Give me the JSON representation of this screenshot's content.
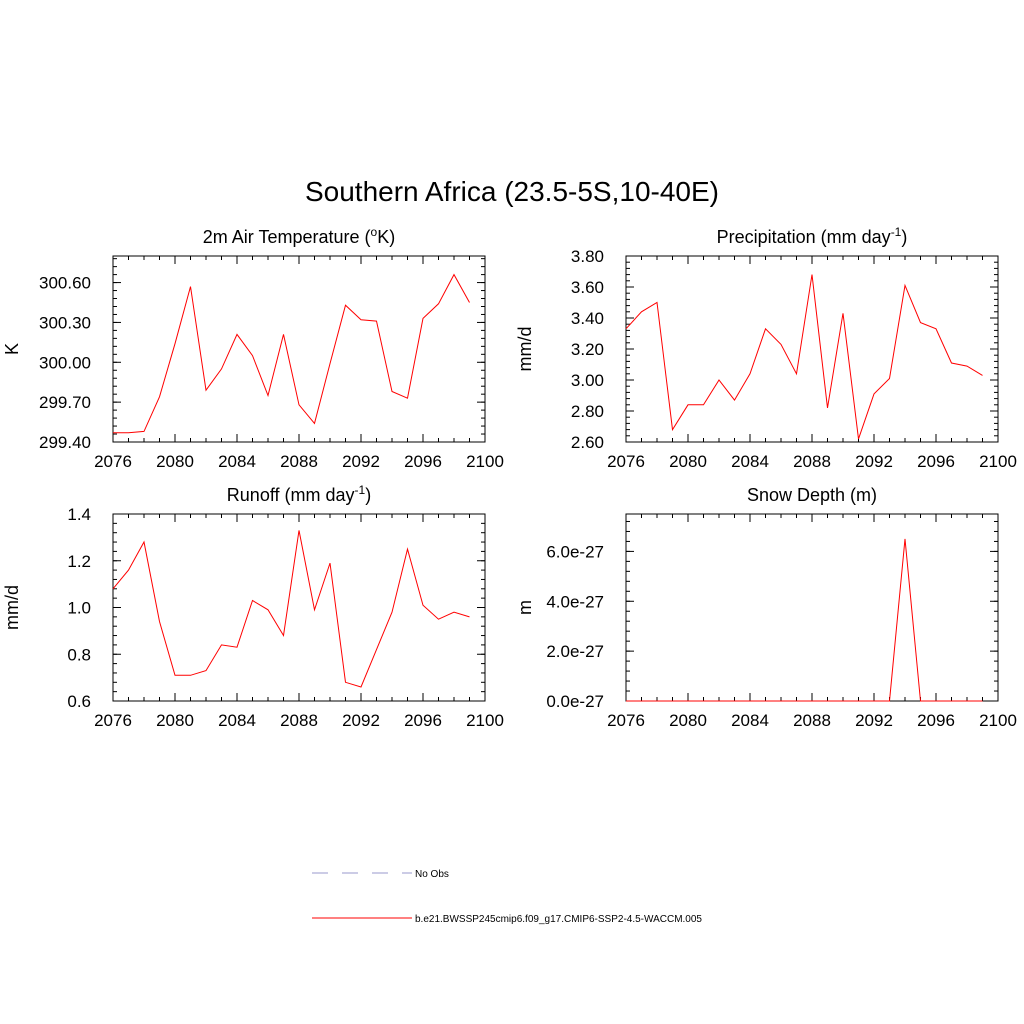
{
  "figure": {
    "title": "Southern Africa (23.5-5S,10-40E)",
    "line_color": "#ff0000",
    "obs_color": "#9999cc",
    "legend": [
      {
        "label": "No Obs",
        "style": "dashed",
        "color": "#9999cc"
      },
      {
        "label": "b.e21.BWSSP245cmip6.f09_g17.CMIP6-SSP2-4.5-WACCM.005",
        "style": "solid",
        "color": "#ff0000"
      }
    ]
  },
  "chart_data": [
    {
      "type": "line",
      "title": "2m Air Temperature (",
      "title_sup": "o",
      "title_after": "K)",
      "ylabel": "K",
      "xlim": [
        2076,
        2100
      ],
      "ylim": [
        299.4,
        300.8
      ],
      "x_ticks": [
        "2076",
        "2080",
        "2084",
        "2088",
        "2092",
        "2096",
        "2100"
      ],
      "y_ticks": [
        {
          "value": 299.4,
          "label": "299.40"
        },
        {
          "value": 299.7,
          "label": "299.70"
        },
        {
          "value": 300.0,
          "label": "300.00"
        },
        {
          "value": 300.3,
          "label": "300.30"
        },
        {
          "value": 300.6,
          "label": "300.60"
        }
      ],
      "y_minor_step": 0.06,
      "x": [
        2076,
        2077,
        2078,
        2079,
        2080,
        2081,
        2082,
        2083,
        2084,
        2085,
        2086,
        2087,
        2088,
        2089,
        2090,
        2091,
        2092,
        2093,
        2094,
        2095,
        2096,
        2097,
        2098,
        2099
      ],
      "values": [
        299.47,
        299.47,
        299.48,
        299.74,
        300.14,
        300.57,
        299.79,
        299.95,
        300.21,
        300.05,
        299.75,
        300.21,
        299.68,
        299.54,
        299.99,
        300.43,
        300.32,
        300.31,
        299.78,
        299.73,
        300.33,
        300.44,
        300.66,
        300.45
      ]
    },
    {
      "type": "line",
      "title": "Precipitation (mm day",
      "title_sup": "-1",
      "title_after": ")",
      "ylabel": "mm/d",
      "xlim": [
        2076,
        2100
      ],
      "ylim": [
        2.6,
        3.8
      ],
      "x_ticks": [
        "2076",
        "2080",
        "2084",
        "2088",
        "2092",
        "2096",
        "2100"
      ],
      "y_ticks": [
        {
          "value": 2.6,
          "label": "2.60"
        },
        {
          "value": 2.8,
          "label": "2.80"
        },
        {
          "value": 3.0,
          "label": "3.00"
        },
        {
          "value": 3.2,
          "label": "3.20"
        },
        {
          "value": 3.4,
          "label": "3.40"
        },
        {
          "value": 3.6,
          "label": "3.60"
        },
        {
          "value": 3.8,
          "label": "3.80"
        }
      ],
      "y_minor_step": 0.04,
      "x": [
        2076,
        2077,
        2078,
        2079,
        2080,
        2081,
        2082,
        2083,
        2084,
        2085,
        2086,
        2087,
        2088,
        2089,
        2090,
        2091,
        2092,
        2093,
        2094,
        2095,
        2096,
        2097,
        2098,
        2099
      ],
      "values": [
        3.33,
        3.44,
        3.5,
        2.68,
        2.84,
        2.84,
        3.0,
        2.87,
        3.04,
        3.33,
        3.23,
        3.04,
        3.68,
        2.82,
        3.43,
        2.62,
        2.91,
        3.01,
        3.61,
        3.37,
        3.33,
        3.11,
        3.09,
        3.03
      ]
    },
    {
      "type": "line",
      "title": "Runoff (mm day",
      "title_sup": "-1",
      "title_after": ")",
      "ylabel": "mm/d",
      "xlim": [
        2076,
        2100
      ],
      "ylim": [
        0.6,
        1.4
      ],
      "x_ticks": [
        "2076",
        "2080",
        "2084",
        "2088",
        "2092",
        "2096",
        "2100"
      ],
      "y_ticks": [
        {
          "value": 0.6,
          "label": "0.6"
        },
        {
          "value": 0.8,
          "label": "0.8"
        },
        {
          "value": 1.0,
          "label": "1.0"
        },
        {
          "value": 1.2,
          "label": "1.2"
        },
        {
          "value": 1.4,
          "label": "1.4"
        }
      ],
      "y_minor_step": 0.04,
      "x": [
        2076,
        2077,
        2078,
        2079,
        2080,
        2081,
        2082,
        2083,
        2084,
        2085,
        2086,
        2087,
        2088,
        2089,
        2090,
        2091,
        2092,
        2093,
        2094,
        2095,
        2096,
        2097,
        2098,
        2099
      ],
      "values": [
        1.08,
        1.16,
        1.28,
        0.94,
        0.71,
        0.71,
        0.73,
        0.84,
        0.83,
        1.03,
        0.99,
        0.88,
        1.33,
        0.99,
        1.19,
        0.68,
        0.66,
        0.82,
        0.98,
        1.25,
        1.01,
        0.95,
        0.98,
        0.96
      ]
    },
    {
      "type": "line",
      "title": "Snow Depth (m)",
      "title_sup": "",
      "title_after": "",
      "ylabel": "m",
      "xlim": [
        2076,
        2100
      ],
      "ylim": [
        0,
        7.5e-27
      ],
      "x_ticks": [
        "2076",
        "2080",
        "2084",
        "2088",
        "2092",
        "2096",
        "2100"
      ],
      "y_ticks": [
        {
          "value": 0,
          "label": "0.0e-27"
        },
        {
          "value": 2e-27,
          "label": "2.0e-27"
        },
        {
          "value": 4e-27,
          "label": "4.0e-27"
        },
        {
          "value": 6e-27,
          "label": "6.0e-27"
        }
      ],
      "y_minor_step": 4e-28,
      "x": [
        2076,
        2077,
        2078,
        2079,
        2080,
        2081,
        2082,
        2083,
        2084,
        2085,
        2086,
        2087,
        2088,
        2089,
        2090,
        2091,
        2092,
        2093,
        2094,
        2095,
        2096,
        2097,
        2098,
        2099
      ],
      "values": [
        0,
        0,
        0,
        0,
        0,
        0,
        0,
        0,
        0,
        0,
        0,
        0,
        0,
        0,
        0,
        0,
        0,
        0,
        6.5e-27,
        0,
        0,
        0,
        0,
        0
      ]
    }
  ]
}
